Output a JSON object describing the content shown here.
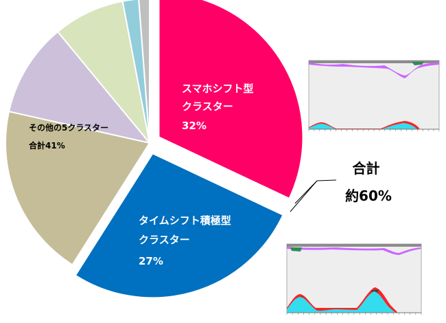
{
  "chart_data": {
    "type": "pie",
    "slices": [
      {
        "label_lines": [
          "スマホシフト型",
          "クラスター"
        ],
        "value_text": "32%",
        "value": 32,
        "color": "#ff0066",
        "exploded": true,
        "label_color": "#ffffff"
      },
      {
        "label_lines": [
          "タイムシフト積極型",
          "クラスター"
        ],
        "value_text": "27%",
        "value": 27,
        "color": "#0070c0",
        "exploded": true,
        "label_color": "#ffffff"
      },
      {
        "label_lines": [],
        "value_text": "",
        "value": 19.5,
        "color": "#c4bd97",
        "exploded": false
      },
      {
        "label_lines": [],
        "value_text": "",
        "value": 10.5,
        "color": "#ccc0da",
        "exploded": false
      },
      {
        "label_lines": [],
        "value_text": "",
        "value": 8,
        "color": "#d8e4bc",
        "exploded": false
      },
      {
        "label_lines": [],
        "value_text": "",
        "value": 1.8,
        "color": "#92cddc",
        "exploded": false
      },
      {
        "label_lines": [],
        "value_text": "",
        "value": 1.2,
        "color": "#bfbfbf",
        "exploded": false
      }
    ],
    "group_label_lines": [
      "その他の5クラスター",
      "合計41%"
    ],
    "total_callout_lines": [
      "合計",
      "約60%"
    ],
    "inset_charts": [
      {
        "type": "area",
        "for_slice": "スマホシフト型クラスター"
      },
      {
        "type": "area",
        "for_slice": "タイムシフト積極型クラスター"
      }
    ]
  }
}
